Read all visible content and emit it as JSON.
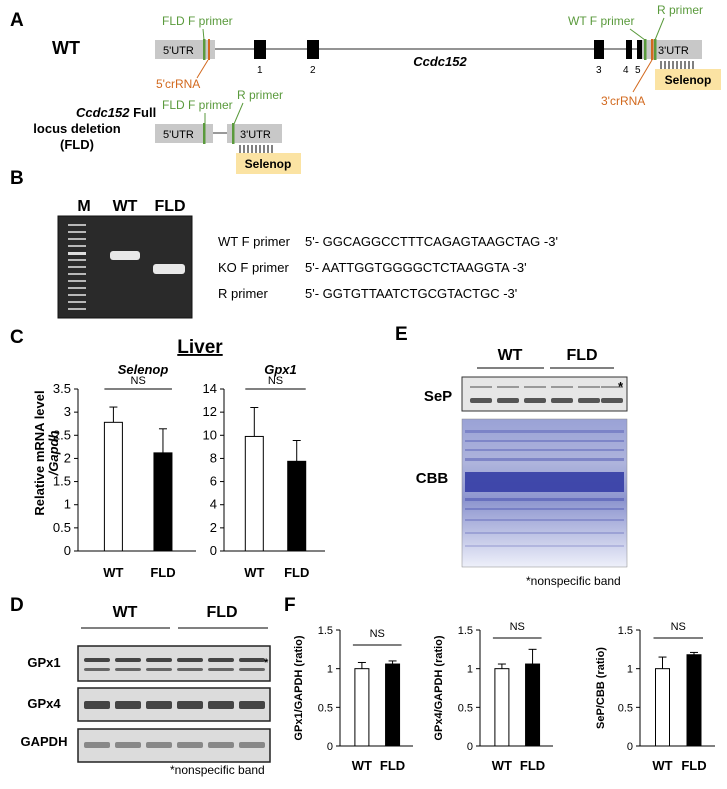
{
  "panels": {
    "A": "A",
    "B": "B",
    "C": "C",
    "D": "D",
    "E": "E",
    "F": "F"
  },
  "colors": {
    "utr": "#c8c8c8",
    "exon": "#000000",
    "primer_green": "#5a9a3c",
    "crrna_orange": "#d2691e",
    "selenop_fill": "#fbe3a3",
    "gel_bg": "#2a2a2a",
    "bar_fld": "#000000",
    "bar_wt": "#ffffff",
    "cbb": "#4a52b0"
  },
  "panelA": {
    "wt_label": "WT",
    "gene_label": "Ccdc152",
    "utr5": "5'UTR",
    "utr3": "3'UTR",
    "fld_f_primer": "FLD F primer",
    "wt_f_primer": "WT F primer",
    "r_primer": "R primer",
    "crrna5": "5'crRNA",
    "crrna3": "3'crRNA",
    "exons": [
      "1",
      "2",
      "3",
      "4",
      "5"
    ],
    "selenop": "Selenop",
    "fld_title_gene": "Ccdc152",
    "fld_title_rest": "Full",
    "fld_line2": "locus deletion",
    "fld_line3": "(FLD)"
  },
  "panelB": {
    "lanes": [
      "M",
      "WT",
      "FLD"
    ],
    "primers": [
      {
        "name": "WT F primer",
        "seq": "5'- GGCAGGCCTTTCAGAGTAAGCTAG -3'"
      },
      {
        "name": "KO F primer",
        "seq": "5'- AATTGGTGGGGCTCTAAGGTA -3'"
      },
      {
        "name": "R primer",
        "seq": "5'- GGTGTTAATCTGCGTACTGC -3'"
      }
    ]
  },
  "panelC": {
    "title": "Liver",
    "ylabel_line1": "Relative mRNA level",
    "ylabel_line2": "/Gapdh",
    "ns": "NS"
  },
  "panelD": {
    "groups": [
      "WT",
      "FLD"
    ],
    "rows": [
      "GPx1",
      "GPx4",
      "GAPDH"
    ],
    "star": "*",
    "footnote": "*nonspecific band"
  },
  "panelE": {
    "groups": [
      "WT",
      "FLD"
    ],
    "rows": [
      "SeP",
      "CBB"
    ],
    "star": "*",
    "footnote": "*nonspecific band"
  },
  "chart_data": [
    {
      "type": "bar",
      "title": "Selenop",
      "categories": [
        "WT",
        "FLD"
      ],
      "values": [
        2.78,
        2.12
      ],
      "errors": [
        0.33,
        0.52
      ],
      "ylabel": "Relative mRNA level /Gapdh",
      "ylim": [
        0,
        3.5
      ],
      "yticks": [
        "0",
        "0.5",
        "1",
        "1.5",
        "2",
        "2.5",
        "3",
        "3.5"
      ],
      "annotation": "NS"
    },
    {
      "type": "bar",
      "title": "Gpx1",
      "categories": [
        "WT",
        "FLD"
      ],
      "values": [
        9.9,
        7.75
      ],
      "errors": [
        2.5,
        1.8
      ],
      "ylabel": "",
      "ylim": [
        0,
        14
      ],
      "yticks": [
        "0",
        "2",
        "4",
        "6",
        "8",
        "10",
        "12",
        "14"
      ],
      "annotation": "NS"
    },
    {
      "type": "bar",
      "title": "",
      "categories": [
        "WT",
        "FLD"
      ],
      "values": [
        1.0,
        1.06
      ],
      "errors": [
        0.08,
        0.04
      ],
      "ylabel": "GPx1/GAPDH (ratio)",
      "ylim": [
        0,
        1.5
      ],
      "yticks": [
        "0",
        "0.5",
        "1",
        "1.5"
      ],
      "annotation": "NS"
    },
    {
      "type": "bar",
      "title": "",
      "categories": [
        "WT",
        "FLD"
      ],
      "values": [
        1.0,
        1.06
      ],
      "errors": [
        0.06,
        0.19
      ],
      "ylabel": "GPx4/GAPDH (ratio)",
      "ylim": [
        0,
        1.5
      ],
      "yticks": [
        "0",
        "0.5",
        "1",
        "1.5"
      ],
      "annotation": "NS"
    },
    {
      "type": "bar",
      "title": "",
      "categories": [
        "WT",
        "FLD"
      ],
      "values": [
        1.0,
        1.18
      ],
      "errors": [
        0.15,
        0.03
      ],
      "ylabel": "SeP/CBB (ratio)",
      "ylim": [
        0,
        1.5
      ],
      "yticks": [
        "0",
        "0.5",
        "1",
        "1.5"
      ],
      "annotation": "NS"
    }
  ]
}
